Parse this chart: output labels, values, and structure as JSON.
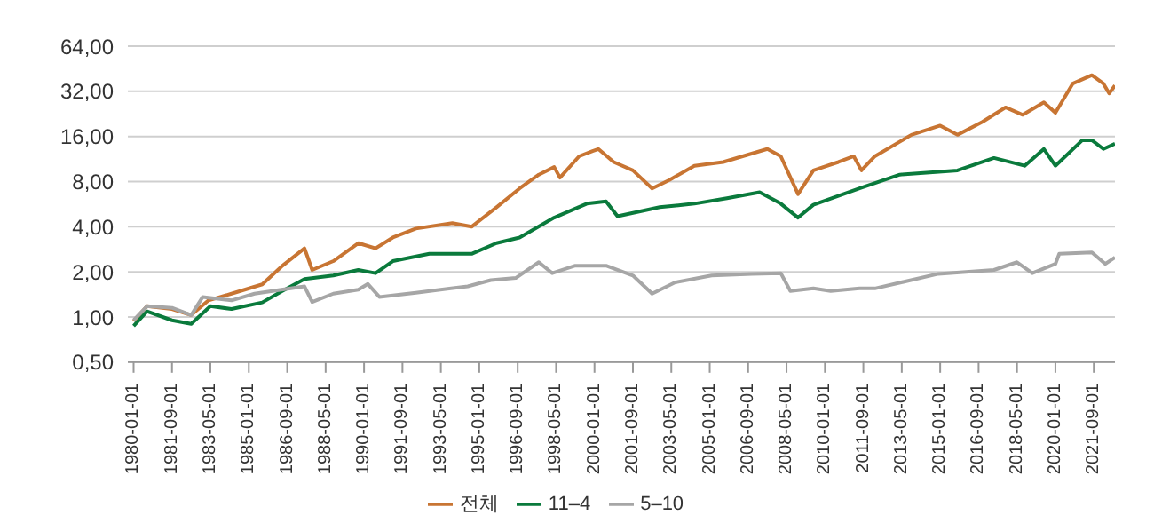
{
  "chart_data": {
    "type": "line",
    "xlim": [
      "1979-10",
      "2022-08"
    ],
    "xticks": [
      {
        "value": "1980-01",
        "label": "1980-01-01"
      },
      {
        "value": "1981-09",
        "label": "1981-09-01"
      },
      {
        "value": "1983-05",
        "label": "1983-05-01"
      },
      {
        "value": "1985-01",
        "label": "1985-01-01"
      },
      {
        "value": "1986-09",
        "label": "1986-09-01"
      },
      {
        "value": "1988-05",
        "label": "1988-05-01"
      },
      {
        "value": "1990-01",
        "label": "1990-01-01"
      },
      {
        "value": "1991-09",
        "label": "1991-09-01"
      },
      {
        "value": "1993-05",
        "label": "1993-05-01"
      },
      {
        "value": "1995-01",
        "label": "1995-01-01"
      },
      {
        "value": "1996-09",
        "label": "1996-09-01"
      },
      {
        "value": "1998-05",
        "label": "1998-05-01"
      },
      {
        "value": "2000-01",
        "label": "2000-01-01"
      },
      {
        "value": "2001-09",
        "label": "2001-09-01"
      },
      {
        "value": "2003-05",
        "label": "2003-05-01"
      },
      {
        "value": "2005-01",
        "label": "2005-01-01"
      },
      {
        "value": "2006-09",
        "label": "2006-09-01"
      },
      {
        "value": "2008-05",
        "label": "2008-05-01"
      },
      {
        "value": "2010-01",
        "label": "2010-01-01"
      },
      {
        "value": "2011-09",
        "label": "2011-09-01"
      },
      {
        "value": "2013-05",
        "label": "2013-05-01"
      },
      {
        "value": "2015-01",
        "label": "2015-01-01"
      },
      {
        "value": "2016-09",
        "label": "2016-09-01"
      },
      {
        "value": "2018-05",
        "label": "2018-05-01"
      },
      {
        "value": "2020-01",
        "label": "2020-01-01"
      },
      {
        "value": "2021-09",
        "label": "2021-09-01"
      }
    ],
    "ylim": [
      0.5,
      64
    ],
    "log": true,
    "yticks": [
      {
        "value": 0.5,
        "label": "0,50"
      },
      {
        "value": 1,
        "label": "1,00"
      },
      {
        "value": 2,
        "label": "2,00"
      },
      {
        "value": 4,
        "label": "4,00"
      },
      {
        "value": 8,
        "label": "8,00"
      },
      {
        "value": 16,
        "label": "16,00"
      },
      {
        "value": 32,
        "label": "32,00"
      },
      {
        "value": 64,
        "label": "64,00"
      }
    ],
    "grid": "y",
    "legend": "bottom",
    "marker": "none",
    "line_style": "solid",
    "series": [
      {
        "name": "전체",
        "color": "#c87533",
        "x": [
          "1980-01",
          "1980-08",
          "1981-09",
          "1982-07",
          "1983-04",
          "1984-04",
          "1985-08",
          "1986-06",
          "1987-06",
          "1987-10",
          "1988-09",
          "1989-10",
          "1990-07",
          "1991-04",
          "1992-04",
          "1993-11",
          "1994-09",
          "1995-10",
          "1996-10",
          "1997-08",
          "1998-04",
          "1998-07",
          "1999-05",
          "1999-12",
          "2000-03",
          "2000-11",
          "2001-09",
          "2002-07",
          "2003-04",
          "2004-05",
          "2005-08",
          "2007-07",
          "2008-02",
          "2008-11",
          "2009-07",
          "2010-08",
          "2011-04",
          "2011-08",
          "2012-03",
          "2013-10",
          "2015-01",
          "2015-10",
          "2016-11",
          "2017-11",
          "2018-08",
          "2019-07",
          "2020-01",
          "2020-10",
          "2021-08",
          "2022-02",
          "2022-05",
          "2022-08"
        ],
        "values": [
          0.94,
          1.18,
          1.13,
          1.03,
          1.29,
          1.43,
          1.65,
          2.17,
          2.87,
          2.06,
          2.36,
          3.11,
          2.87,
          3.39,
          3.89,
          4.23,
          4.0,
          5.4,
          7.2,
          8.9,
          10.0,
          8.5,
          11.8,
          12.8,
          13.2,
          10.8,
          9.5,
          7.2,
          8.2,
          10.2,
          10.8,
          13.2,
          11.8,
          6.6,
          9.5,
          10.8,
          11.8,
          9.5,
          11.8,
          16.4,
          18.9,
          16.4,
          20,
          25,
          22.3,
          27,
          23,
          36,
          41,
          36,
          31,
          35
        ]
      },
      {
        "name": "11–4",
        "color": "#0a7a3c",
        "x": [
          "1980-01",
          "1980-08",
          "1981-09",
          "1982-07",
          "1983-05",
          "1984-04",
          "1985-08",
          "1986-06",
          "1987-06",
          "1988-09",
          "1989-10",
          "1990-07",
          "1991-04",
          "1992-11",
          "1994-09",
          "1995-10",
          "1996-10",
          "1998-04",
          "1999-09",
          "2000-07",
          "2001-01",
          "2002-11",
          "2004-05",
          "2005-10",
          "2007-03",
          "2008-02",
          "2008-11",
          "2009-07",
          "2011-07",
          "2013-04",
          "2015-10",
          "2017-05",
          "2018-09",
          "2019-07",
          "2020-01",
          "2021-03",
          "2021-08",
          "2022-02",
          "2022-08"
        ],
        "values": [
          0.87,
          1.09,
          0.95,
          0.9,
          1.18,
          1.13,
          1.25,
          1.48,
          1.79,
          1.89,
          2.06,
          1.96,
          2.36,
          2.64,
          2.64,
          3.11,
          3.39,
          4.6,
          5.7,
          5.9,
          4.7,
          5.4,
          5.7,
          6.2,
          6.8,
          5.7,
          4.6,
          5.6,
          7.2,
          8.9,
          9.5,
          11.5,
          10.2,
          13.2,
          10.2,
          15.1,
          15.1,
          13.2,
          14.3
        ]
      },
      {
        "name": "5–10",
        "color": "#a6a6a6",
        "x": [
          "1980-01",
          "1980-08",
          "1981-09",
          "1982-07",
          "1983-01",
          "1984-04",
          "1985-04",
          "1986-06",
          "1987-06",
          "1987-10",
          "1988-09",
          "1989-10",
          "1990-03",
          "1990-09",
          "1992-04",
          "1994-07",
          "1995-07",
          "1996-08",
          "1997-08",
          "1998-03",
          "1999-03",
          "1999-12",
          "2000-07",
          "2001-09",
          "2002-07",
          "2003-07",
          "2005-02",
          "2006-11",
          "2008-02",
          "2008-07",
          "2009-07",
          "2010-04",
          "2011-07",
          "2012-03",
          "2014-12",
          "2017-05",
          "2018-05",
          "2019-01",
          "2020-01",
          "2020-03",
          "2021-08",
          "2022-03",
          "2022-08"
        ],
        "values": [
          0.95,
          1.18,
          1.15,
          1.03,
          1.36,
          1.29,
          1.43,
          1.52,
          1.6,
          1.26,
          1.43,
          1.52,
          1.66,
          1.36,
          1.45,
          1.6,
          1.76,
          1.82,
          2.32,
          1.96,
          2.2,
          2.2,
          2.2,
          1.89,
          1.43,
          1.7,
          1.89,
          1.94,
          1.96,
          1.49,
          1.55,
          1.49,
          1.55,
          1.55,
          1.94,
          2.06,
          2.32,
          1.96,
          2.26,
          2.64,
          2.7,
          2.26,
          2.5
        ]
      }
    ]
  }
}
